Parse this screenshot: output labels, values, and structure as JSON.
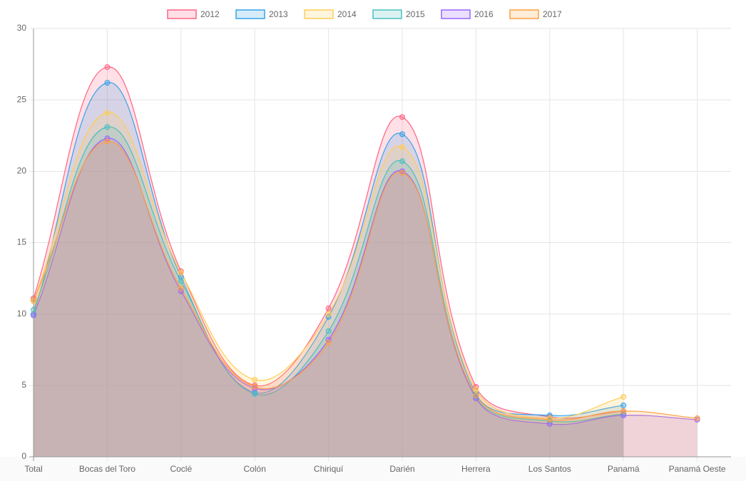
{
  "chart_data": {
    "type": "line",
    "fill": true,
    "legend": "top",
    "grid": true,
    "categories": [
      "Total",
      "Bocas del Toro",
      "Coclé",
      "Colón",
      "Chiriquí",
      "Darién",
      "Herrera",
      "Los Santos",
      "Panamá",
      "Panamá Oeste"
    ],
    "ylim": [
      0,
      30
    ],
    "yticks": [
      0,
      5,
      10,
      15,
      20,
      25,
      30
    ],
    "series": [
      {
        "name": "2012",
        "color": "#ff6384",
        "values": [
          11.1,
          27.3,
          13.0,
          5.0,
          10.4,
          23.8,
          4.9,
          2.8,
          3.2,
          null
        ]
      },
      {
        "name": "2013",
        "color": "#36a2eb",
        "values": [
          10.0,
          26.2,
          12.6,
          4.5,
          9.8,
          22.6,
          4.4,
          2.9,
          3.6,
          null
        ]
      },
      {
        "name": "2014",
        "color": "#ffcd56",
        "values": [
          10.9,
          24.1,
          12.9,
          5.4,
          10.0,
          21.7,
          4.7,
          2.7,
          4.2,
          null
        ]
      },
      {
        "name": "2015",
        "color": "#4bc0c0",
        "values": [
          10.3,
          23.1,
          12.3,
          4.4,
          8.8,
          20.7,
          4.2,
          2.5,
          3.0,
          null
        ]
      },
      {
        "name": "2016",
        "color": "#9966ff",
        "values": [
          9.9,
          22.3,
          11.6,
          4.8,
          8.2,
          20.0,
          4.1,
          2.3,
          2.9,
          2.6
        ]
      },
      {
        "name": "2017",
        "color": "#ff9f40",
        "values": [
          11.0,
          22.1,
          11.8,
          4.9,
          8.0,
          19.9,
          4.3,
          2.6,
          3.2,
          2.7
        ]
      }
    ]
  }
}
